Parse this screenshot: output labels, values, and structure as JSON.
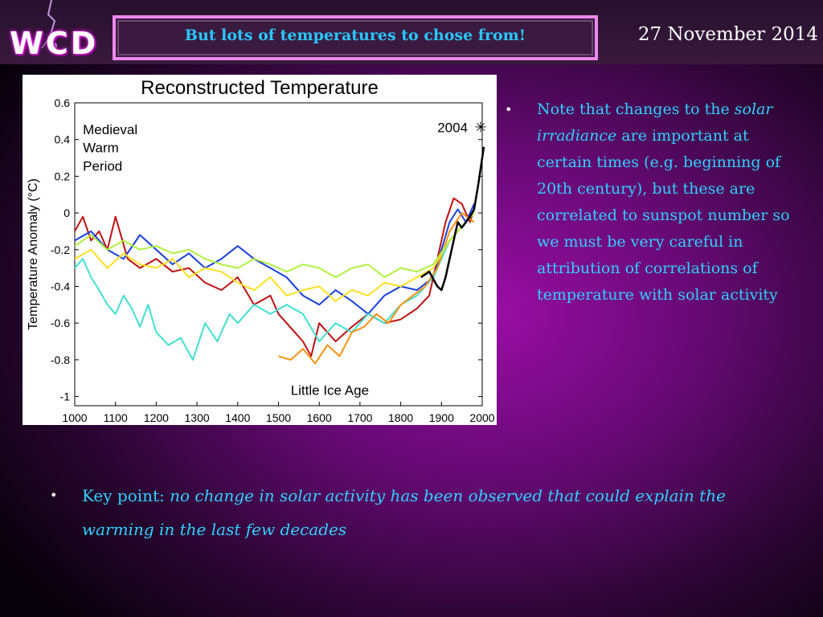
{
  "header": {
    "logo": "WCD",
    "title": "But lots of temperatures to chose from!",
    "date": "27 November 2014"
  },
  "note_bullet": {
    "part1": "Note that changes to the ",
    "italic1": "solar irradiance",
    "part2": " are important at certain times (e.g. beginning of 20th century), but these are correlated to sunspot number so we must be very careful in attribution of correlations of temperature with solar activity"
  },
  "key_bullet": {
    "label": "Key point: ",
    "italic": "no change in solar activity has been observed that could explain the warming in the last few decades"
  },
  "colors": {
    "text_accent": "#2fd0ff",
    "title_box_border": "#ee88ee",
    "bg_center": "#9b0ea6"
  },
  "chart_data": {
    "type": "line",
    "title": "Reconstructed Temperature",
    "xlabel": "",
    "ylabel": "Temperature Anomaly (°C)",
    "xlim": [
      1000,
      2000
    ],
    "ylim": [
      -1.05,
      0.6
    ],
    "x_ticks": [
      "1000",
      "1100",
      "1200",
      "1300",
      "1400",
      "1500",
      "1600",
      "1700",
      "1800",
      "1900",
      "2000"
    ],
    "y_ticks": [
      "0.6",
      "0.4",
      "0.2",
      "0",
      "-0.2",
      "-0.4",
      "-0.6",
      "-0.8",
      "-1"
    ],
    "annotations": [
      {
        "text": "Medieval",
        "x": 1020,
        "y": 0.43
      },
      {
        "text": "Warm",
        "x": 1020,
        "y": 0.33
      },
      {
        "text": "Period",
        "x": 1020,
        "y": 0.23
      },
      {
        "text": "Little Ice Age",
        "x": 1530,
        "y": -0.99
      },
      {
        "text": "2004",
        "x": 1890,
        "y": 0.44
      }
    ],
    "marker": {
      "label": "2004",
      "x": 2004,
      "y": 0.44
    },
    "series": [
      {
        "color": "#c01010",
        "x": [
          1000,
          1020,
          1040,
          1060,
          1080,
          1100,
          1130,
          1160,
          1200,
          1240,
          1280,
          1320,
          1360,
          1400,
          1440,
          1480,
          1500,
          1540,
          1560,
          1580,
          1600,
          1640,
          1680,
          1720,
          1760,
          1800,
          1840,
          1870,
          1890,
          1910,
          1930,
          1950,
          1970,
          1980
        ],
        "y": [
          -0.1,
          -0.02,
          -0.15,
          -0.1,
          -0.2,
          -0.02,
          -0.25,
          -0.3,
          -0.25,
          -0.32,
          -0.3,
          -0.38,
          -0.42,
          -0.35,
          -0.5,
          -0.45,
          -0.55,
          -0.65,
          -0.7,
          -0.78,
          -0.6,
          -0.7,
          -0.62,
          -0.55,
          -0.6,
          -0.58,
          -0.52,
          -0.45,
          -0.25,
          -0.05,
          0.08,
          0.05,
          -0.05,
          0.02
        ]
      },
      {
        "color": "#1840e0",
        "x": [
          1000,
          1040,
          1080,
          1120,
          1160,
          1200,
          1240,
          1280,
          1320,
          1360,
          1400,
          1440,
          1480,
          1520,
          1560,
          1600,
          1640,
          1680,
          1720,
          1760,
          1800,
          1840,
          1880,
          1900,
          1920,
          1940,
          1960,
          1980
        ],
        "y": [
          -0.15,
          -0.1,
          -0.2,
          -0.25,
          -0.12,
          -0.2,
          -0.28,
          -0.22,
          -0.3,
          -0.25,
          -0.18,
          -0.25,
          -0.3,
          -0.35,
          -0.45,
          -0.5,
          -0.42,
          -0.48,
          -0.55,
          -0.45,
          -0.4,
          -0.42,
          -0.35,
          -0.2,
          -0.05,
          0.02,
          -0.05,
          0.05
        ]
      },
      {
        "color": "#40e0d0",
        "x": [
          1000,
          1020,
          1040,
          1060,
          1080,
          1100,
          1120,
          1140,
          1160,
          1180,
          1200,
          1230,
          1260,
          1290,
          1320,
          1350,
          1380,
          1400,
          1440,
          1480,
          1520,
          1560,
          1600,
          1640,
          1680,
          1720,
          1760,
          1800,
          1840,
          1880,
          1920,
          1960,
          1980
        ],
        "y": [
          -0.3,
          -0.25,
          -0.35,
          -0.42,
          -0.5,
          -0.55,
          -0.45,
          -0.52,
          -0.62,
          -0.5,
          -0.65,
          -0.72,
          -0.68,
          -0.8,
          -0.6,
          -0.7,
          -0.55,
          -0.6,
          -0.5,
          -0.55,
          -0.5,
          -0.55,
          -0.7,
          -0.6,
          -0.65,
          -0.55,
          -0.6,
          -0.5,
          -0.45,
          -0.35,
          -0.15,
          -0.05,
          0.0
        ]
      },
      {
        "color": "#ff9010",
        "x": [
          1500,
          1530,
          1560,
          1590,
          1620,
          1650,
          1680,
          1710,
          1740,
          1770,
          1800,
          1830,
          1860,
          1890,
          1920,
          1950,
          1980
        ],
        "y": [
          -0.78,
          -0.8,
          -0.74,
          -0.82,
          -0.72,
          -0.78,
          -0.65,
          -0.62,
          -0.55,
          -0.6,
          -0.5,
          -0.45,
          -0.4,
          -0.3,
          -0.1,
          0.0,
          -0.05
        ]
      },
      {
        "color": "#ffe020",
        "x": [
          1000,
          1040,
          1080,
          1120,
          1160,
          1200,
          1240,
          1280,
          1320,
          1360,
          1400,
          1440,
          1480,
          1520,
          1560,
          1600,
          1640,
          1680,
          1720,
          1760,
          1800,
          1840,
          1880,
          1920,
          1960,
          1980
        ],
        "y": [
          -0.25,
          -0.2,
          -0.3,
          -0.22,
          -0.28,
          -0.3,
          -0.25,
          -0.35,
          -0.3,
          -0.32,
          -0.38,
          -0.42,
          -0.35,
          -0.45,
          -0.42,
          -0.4,
          -0.48,
          -0.42,
          -0.45,
          -0.38,
          -0.4,
          -0.35,
          -0.3,
          -0.15,
          -0.05,
          0.0
        ]
      },
      {
        "color": "#b0f040",
        "x": [
          1000,
          1040,
          1080,
          1120,
          1160,
          1200,
          1240,
          1280,
          1320,
          1360,
          1400,
          1440,
          1480,
          1520,
          1560,
          1600,
          1640,
          1680,
          1720,
          1760,
          1800,
          1840,
          1880,
          1920,
          1960,
          1980
        ],
        "y": [
          -0.18,
          -0.12,
          -0.2,
          -0.15,
          -0.2,
          -0.18,
          -0.22,
          -0.2,
          -0.25,
          -0.28,
          -0.3,
          -0.25,
          -0.28,
          -0.32,
          -0.28,
          -0.3,
          -0.35,
          -0.3,
          -0.28,
          -0.35,
          -0.3,
          -0.32,
          -0.28,
          -0.15,
          -0.05,
          0.0
        ]
      },
      {
        "color": "#000000",
        "x": [
          1850,
          1870,
          1890,
          1900,
          1910,
          1920,
          1930,
          1940,
          1950,
          1960,
          1970,
          1980,
          1990,
          2004
        ],
        "y": [
          -0.35,
          -0.32,
          -0.4,
          -0.42,
          -0.35,
          -0.25,
          -0.15,
          -0.05,
          -0.08,
          -0.05,
          -0.02,
          0.02,
          0.15,
          0.36
        ]
      }
    ]
  }
}
